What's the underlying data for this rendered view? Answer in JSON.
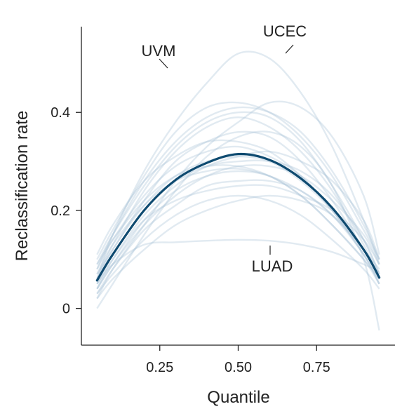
{
  "chart_data": {
    "type": "line",
    "xlabel": "Quantile",
    "ylabel": "Reclassification rate",
    "xlim": [
      0.0,
      1.0
    ],
    "ylim": [
      -0.075,
      0.575
    ],
    "x_ticks": [
      {
        "value": 0.25,
        "label": "0.25"
      },
      {
        "value": 0.5,
        "label": "0.50"
      },
      {
        "value": 0.75,
        "label": "0.75"
      }
    ],
    "y_ticks": [
      {
        "value": 0.0,
        "label": "0"
      },
      {
        "value": 0.2,
        "label": "0.2"
      },
      {
        "value": 0.4,
        "label": "0.4"
      }
    ],
    "grid": false,
    "x": [
      0.05,
      0.1,
      0.2,
      0.3,
      0.4,
      0.5,
      0.6,
      0.7,
      0.8,
      0.9,
      0.95
    ],
    "mean_series": {
      "values": [
        0.057,
        0.11,
        0.2,
        0.262,
        0.297,
        0.315,
        0.303,
        0.265,
        0.205,
        0.12,
        0.063
      ],
      "color": "#0e4a70"
    },
    "background_color": "#a9c4d6",
    "background_series": [
      {
        "values": [
          0.06,
          0.15,
          0.28,
          0.38,
          0.46,
          0.52,
          0.51,
          0.44,
          0.33,
          0.18,
          0.09
        ]
      },
      {
        "values": [
          0.02,
          0.08,
          0.17,
          0.26,
          0.33,
          0.38,
          0.42,
          0.41,
          0.35,
          0.23,
          0.11
        ]
      },
      {
        "values": [
          0.05,
          0.09,
          0.13,
          0.135,
          0.138,
          0.14,
          0.138,
          0.13,
          0.115,
          0.09,
          0.075
        ]
      },
      {
        "values": [
          0.09,
          0.15,
          0.25,
          0.33,
          0.38,
          0.4,
          0.39,
          0.34,
          0.25,
          0.14,
          0.07
        ]
      },
      {
        "values": [
          0.07,
          0.12,
          0.22,
          0.3,
          0.34,
          0.36,
          0.35,
          0.3,
          0.22,
          0.12,
          0.06
        ]
      },
      {
        "values": [
          0.04,
          0.09,
          0.18,
          0.24,
          0.27,
          0.28,
          0.27,
          0.23,
          0.17,
          0.1,
          0.05
        ]
      },
      {
        "values": [
          0.1,
          0.16,
          0.27,
          0.36,
          0.41,
          0.42,
          0.4,
          0.35,
          0.27,
          0.16,
          0.1
        ]
      },
      {
        "values": [
          0.03,
          0.07,
          0.14,
          0.19,
          0.22,
          0.23,
          0.22,
          0.19,
          0.14,
          0.08,
          0.04
        ]
      },
      {
        "values": [
          0.08,
          0.14,
          0.23,
          0.29,
          0.32,
          0.33,
          0.31,
          0.27,
          0.2,
          0.11,
          0.05
        ]
      },
      {
        "values": [
          0.05,
          0.11,
          0.2,
          0.26,
          0.29,
          0.3,
          0.3,
          0.28,
          0.23,
          0.14,
          0.07
        ]
      },
      {
        "values": [
          0.06,
          0.13,
          0.24,
          0.32,
          0.37,
          0.39,
          0.37,
          0.32,
          0.24,
          0.13,
          0.06
        ]
      },
      {
        "values": [
          0.02,
          0.06,
          0.12,
          0.17,
          0.2,
          0.22,
          0.23,
          0.22,
          0.19,
          0.12,
          0.06
        ]
      },
      {
        "values": [
          0.07,
          0.13,
          0.21,
          0.26,
          0.28,
          0.285,
          0.27,
          0.24,
          0.19,
          0.12,
          0.08
        ]
      },
      {
        "values": [
          0.04,
          0.1,
          0.19,
          0.25,
          0.29,
          0.31,
          0.32,
          0.3,
          0.26,
          0.18,
          0.1
        ]
      },
      {
        "values": [
          0.11,
          0.17,
          0.26,
          0.31,
          0.34,
          0.34,
          0.32,
          0.27,
          0.2,
          0.11,
          0.06
        ]
      },
      {
        "values": [
          0.0,
          0.05,
          0.15,
          0.24,
          0.31,
          0.35,
          0.36,
          0.33,
          0.25,
          0.1,
          -0.045
        ]
      },
      {
        "values": [
          0.05,
          0.1,
          0.18,
          0.22,
          0.24,
          0.25,
          0.25,
          0.23,
          0.2,
          0.14,
          0.09
        ]
      },
      {
        "values": [
          0.08,
          0.15,
          0.26,
          0.34,
          0.39,
          0.41,
          0.4,
          0.36,
          0.28,
          0.17,
          0.1
        ]
      },
      {
        "values": [
          0.03,
          0.08,
          0.16,
          0.21,
          0.25,
          0.26,
          0.26,
          0.24,
          0.19,
          0.11,
          0.05
        ]
      },
      {
        "values": [
          0.06,
          0.12,
          0.21,
          0.27,
          0.3,
          0.31,
          0.3,
          0.26,
          0.2,
          0.12,
          0.07
        ]
      },
      {
        "values": [
          0.04,
          0.09,
          0.17,
          0.23,
          0.27,
          0.29,
          0.29,
          0.27,
          0.22,
          0.15,
          0.09
        ]
      },
      {
        "values": [
          0.09,
          0.14,
          0.22,
          0.27,
          0.29,
          0.29,
          0.27,
          0.23,
          0.17,
          0.1,
          0.06
        ]
      }
    ],
    "annotations": [
      {
        "text": "UVM"
      },
      {
        "text": "UCEC"
      },
      {
        "text": "LUAD"
      }
    ]
  }
}
